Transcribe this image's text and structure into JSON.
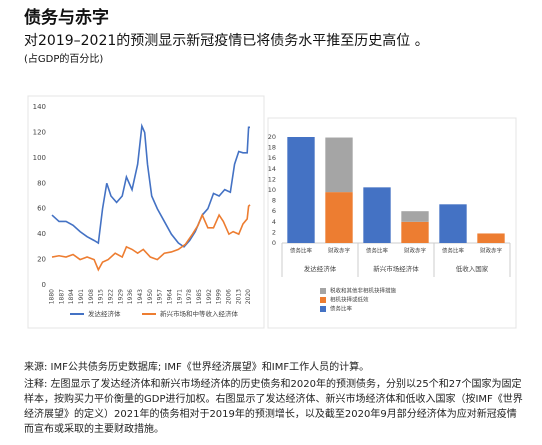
{
  "header": {
    "title": "债务与赤字",
    "subtitle": "对2019–2021的预测显示新冠疫情已将债务水平推至历史高位 。",
    "unit": "(占GDP的百分比)"
  },
  "chart_data": [
    {
      "type": "line",
      "xlim": [
        1880,
        2021
      ],
      "ylim": [
        0,
        140
      ],
      "yticks": [
        0,
        20,
        40,
        60,
        80,
        100,
        120,
        140
      ],
      "xticks": [
        1880,
        1887,
        1894,
        1901,
        1908,
        1915,
        1922,
        1929,
        1936,
        1943,
        1950,
        1957,
        1964,
        1971,
        1978,
        1985,
        1992,
        1999,
        2006,
        2013,
        2020
      ],
      "grid": false,
      "series": [
        {
          "name": "发达经济体",
          "color": "#4472c4",
          "x": [
            1880,
            1885,
            1890,
            1895,
            1900,
            1905,
            1910,
            1913,
            1916,
            1919,
            1922,
            1926,
            1930,
            1933,
            1937,
            1941,
            1944,
            1946,
            1948,
            1951,
            1955,
            1960,
            1965,
            1970,
            1974,
            1978,
            1982,
            1987,
            1991,
            1995,
            1999,
            2003,
            2007,
            2010,
            2013,
            2016,
            2019,
            2020,
            2021
          ],
          "values": [
            55,
            50,
            50,
            47,
            42,
            38,
            35,
            33,
            60,
            80,
            70,
            65,
            70,
            85,
            75,
            95,
            125,
            120,
            95,
            70,
            60,
            50,
            40,
            33,
            30,
            35,
            42,
            55,
            60,
            72,
            70,
            75,
            73,
            95,
            105,
            104,
            104,
            124,
            124
          ]
        },
        {
          "name": "新兴市场和中等收入经济体",
          "color": "#ed7d31",
          "x": [
            1880,
            1885,
            1890,
            1895,
            1900,
            1905,
            1910,
            1913,
            1916,
            1920,
            1925,
            1930,
            1933,
            1937,
            1941,
            1945,
            1950,
            1955,
            1960,
            1965,
            1970,
            1975,
            1980,
            1984,
            1987,
            1991,
            1995,
            1999,
            2002,
            2006,
            2009,
            2013,
            2016,
            2019,
            2020,
            2021
          ],
          "values": [
            22,
            23,
            22,
            24,
            20,
            22,
            20,
            12,
            18,
            20,
            25,
            22,
            30,
            28,
            25,
            28,
            22,
            20,
            25,
            26,
            28,
            32,
            40,
            47,
            55,
            45,
            45,
            55,
            50,
            40,
            42,
            40,
            48,
            52,
            62,
            63
          ]
        }
      ]
    },
    {
      "type": "bar",
      "ylim": [
        0,
        20
      ],
      "yticks": [
        0,
        2,
        4,
        6,
        8,
        10,
        12,
        14,
        16,
        18,
        20
      ],
      "grid": false,
      "categories": [
        "债务比率",
        "财政赤字",
        "债务比率",
        "财政赤字",
        "债务比率",
        "财政赤字"
      ],
      "groups": [
        "发达经济体",
        "新兴市场经济体",
        "低收入国家"
      ],
      "series": [
        {
          "name": "债务比率",
          "color": "#4472c4",
          "values": [
            20,
            null,
            10.5,
            null,
            7.3,
            null
          ]
        },
        {
          "name": "相机抉择或低效",
          "color": "#ed7d31",
          "values": [
            null,
            9.6,
            null,
            4,
            null,
            1.8
          ]
        },
        {
          "name": "税收和其他非相机抉择措施",
          "color": "#a5a5a5",
          "values": [
            null,
            10.3,
            null,
            2,
            null,
            null
          ]
        }
      ]
    }
  ],
  "footer": {
    "source": "来源: IMF公共债务历史数据库; IMF《世界经济展望》和IMF工作人员的计算。",
    "note": "注释: 左图显示了发达经济体和新兴市场经济体的历史债务和2020年的预测债务，分别以25个和27个国家为固定样本，按购买力平价衡量的GDP进行加权。右图显示了发达经济体、新兴市场经济体和低收入国家（按IMF《世界经济展望》的定义）2021年的债务相对于2019年的预测增长，以及截至2020年9月部分经济体为应对新冠疫情而宣布或采取的主要财政措施。"
  }
}
